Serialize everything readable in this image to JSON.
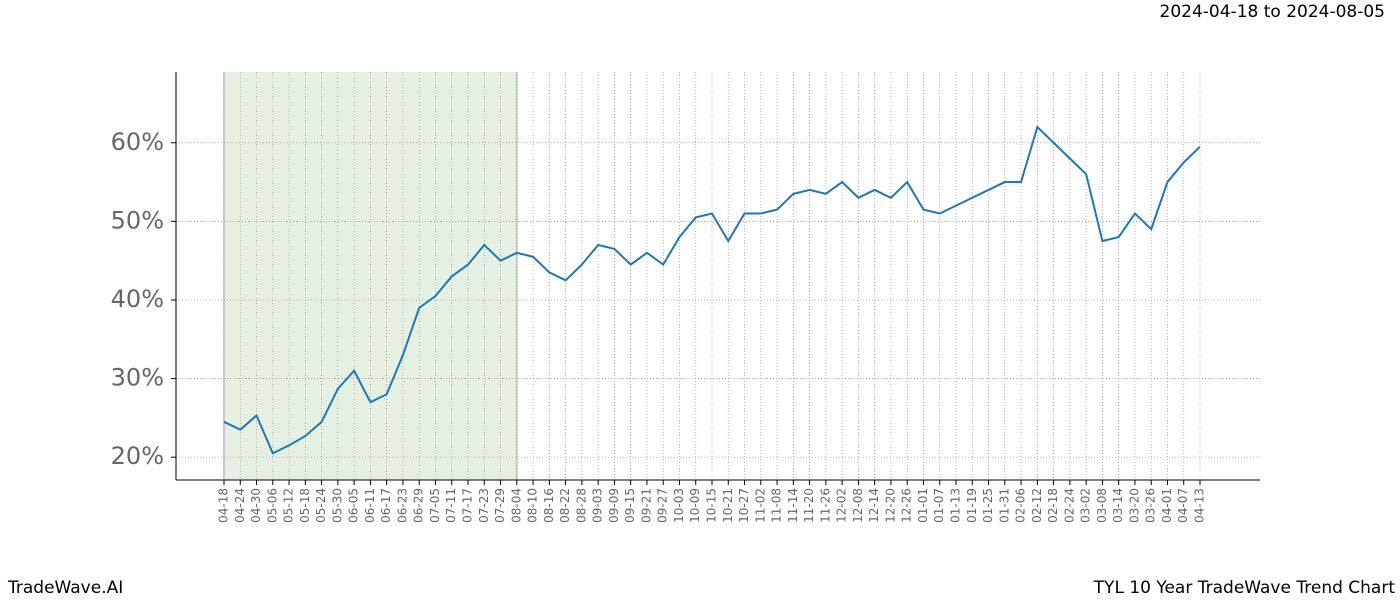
{
  "header": {
    "date_range": "2024-04-18 to 2024-08-05"
  },
  "footer": {
    "brand": "TradeWave.AI",
    "chart_name": "TYL 10 Year TradeWave Trend Chart"
  },
  "chart_data": {
    "type": "line",
    "x": [
      "04-18",
      "04-24",
      "04-30",
      "05-06",
      "05-12",
      "05-18",
      "05-24",
      "05-30",
      "06-05",
      "06-11",
      "06-17",
      "06-23",
      "06-29",
      "07-05",
      "07-11",
      "07-17",
      "07-23",
      "07-29",
      "08-04",
      "08-10",
      "08-16",
      "08-22",
      "08-28",
      "09-03",
      "09-09",
      "09-15",
      "09-21",
      "09-27",
      "10-03",
      "10-09",
      "10-15",
      "10-21",
      "10-27",
      "11-02",
      "11-08",
      "11-14",
      "11-20",
      "11-26",
      "12-02",
      "12-08",
      "12-14",
      "12-20",
      "12-26",
      "01-01",
      "01-07",
      "01-13",
      "01-19",
      "01-25",
      "01-31",
      "02-06",
      "02-12",
      "02-18",
      "02-24",
      "03-02",
      "03-08",
      "03-14",
      "03-20",
      "03-26",
      "04-01",
      "04-07",
      "04-13"
    ],
    "series": [
      {
        "color": "#1f77b4",
        "values": [
          24.5,
          23.5,
          25.3,
          20.5,
          21.5,
          22.7,
          24.5,
          28.7,
          31,
          27,
          28,
          33,
          39,
          40.5,
          43,
          44.5,
          47,
          45,
          46,
          45.5,
          43.5,
          42.5,
          44.5,
          47,
          46.5,
          44.5,
          46,
          44.5,
          48,
          50.5,
          51,
          47.5,
          51,
          51,
          51.5,
          53.5,
          54,
          53.5,
          55,
          53,
          54,
          53,
          55,
          51.5,
          51,
          52,
          53,
          54,
          55,
          55,
          62,
          60,
          58,
          56,
          47.5,
          48,
          51,
          49,
          55,
          57.5,
          59.5
        ]
      }
    ],
    "shade": [
      "04-18",
      "08-04"
    ],
    "shade_color": "#e6f0e2",
    "ylim": [
      17.1,
      69
    ],
    "yticks": [
      {
        "value": 20,
        "label": "20%"
      },
      {
        "value": 30,
        "label": "30%"
      },
      {
        "value": 40,
        "label": "40%"
      },
      {
        "value": 50,
        "label": "50%"
      },
      {
        "value": 60,
        "label": "60%"
      }
    ],
    "grid": true
  }
}
